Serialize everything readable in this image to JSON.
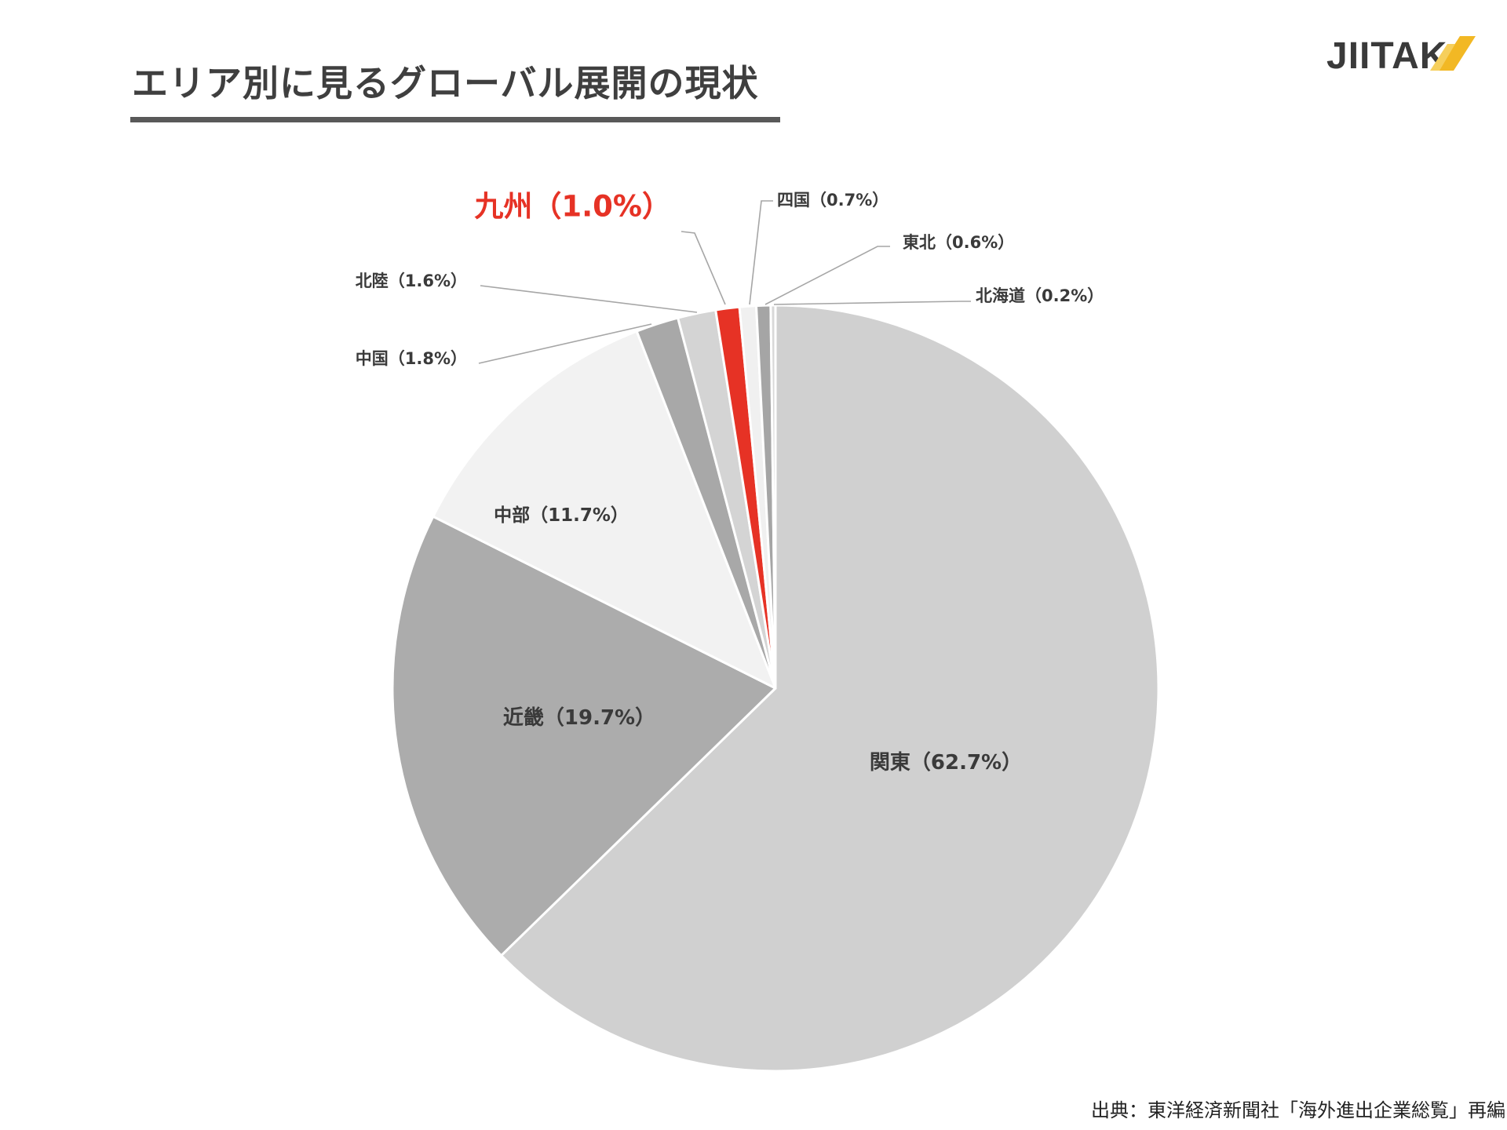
{
  "title": "エリア別に見るグローバル展開の現状",
  "logo": {
    "text": "JIITAK",
    "accent": "#f2b824"
  },
  "source": "出典：東洋経済新聞社「海外進出企業総覧」再編",
  "chart_data": {
    "type": "pie",
    "title": "",
    "start_angle_deg": 0,
    "direction": "clockwise",
    "slices": [
      {
        "name": "関東",
        "value": 62.7,
        "label": "関東（62.7%）",
        "color": "#d0d0d0"
      },
      {
        "name": "近畿",
        "value": 19.7,
        "label": "近畿（19.7%）",
        "color": "#acacac"
      },
      {
        "name": "中部",
        "value": 11.7,
        "label": "中部（11.7%）",
        "color": "#f2f2f2"
      },
      {
        "name": "中国",
        "value": 1.8,
        "label": "中国（1.8%）",
        "color": "#a8a8a8"
      },
      {
        "name": "北陸",
        "value": 1.6,
        "label": "北陸（1.6%）",
        "color": "#d4d4d4"
      },
      {
        "name": "九州",
        "value": 1.0,
        "label": "九州（1.0%）",
        "color": "#e63225",
        "highlight": true
      },
      {
        "name": "四国",
        "value": 0.7,
        "label": "四国（0.7%）",
        "color": "#f0f0f0"
      },
      {
        "name": "東北",
        "value": 0.6,
        "label": "東北（0.6%）",
        "color": "#a5a5a5"
      },
      {
        "name": "北海道",
        "value": 0.2,
        "label": "北海道（0.2%）",
        "color": "#d8d8d8"
      }
    ]
  }
}
